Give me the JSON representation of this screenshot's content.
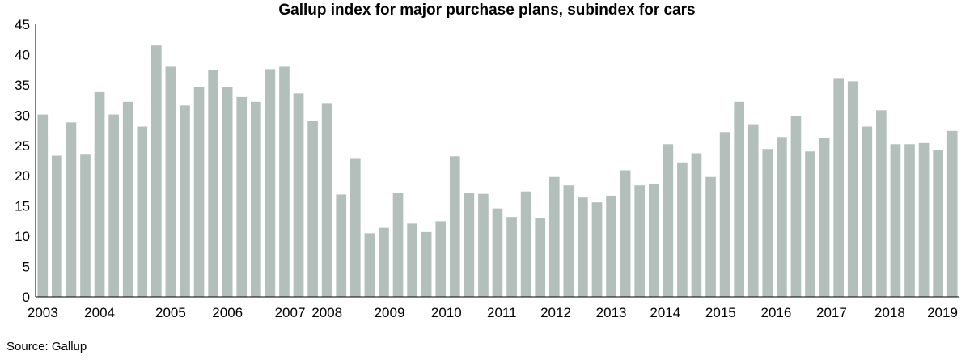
{
  "chart_data": {
    "type": "bar",
    "title": "Gallup index for major purchase plans, subindex for cars",
    "xlabel": "",
    "ylabel": "",
    "ylim": [
      0,
      45
    ],
    "yticks": [
      0,
      5,
      10,
      15,
      20,
      25,
      30,
      35,
      40,
      45
    ],
    "bar_color": "#b2bfba",
    "values": [
      30.1,
      23.3,
      28.8,
      23.6,
      33.8,
      30.1,
      32.2,
      28.1,
      41.5,
      38.0,
      31.6,
      34.7,
      37.5,
      34.7,
      33.0,
      32.2,
      37.6,
      38.0,
      33.6,
      29.0,
      32.0,
      16.9,
      22.9,
      10.5,
      11.4,
      17.1,
      12.1,
      10.7,
      12.5,
      23.2,
      17.2,
      17.0,
      14.6,
      13.2,
      17.4,
      13.0,
      19.8,
      18.4,
      16.4,
      15.6,
      16.7,
      20.9,
      18.4,
      18.7,
      25.2,
      22.2,
      23.7,
      19.8,
      27.2,
      32.2,
      28.5,
      24.4,
      26.4,
      29.8,
      24.0,
      26.2,
      36.0,
      35.6,
      28.1,
      30.8,
      25.2,
      25.2,
      25.4,
      24.3,
      27.4
    ],
    "x_tick_labels": [
      {
        "label": "2003",
        "bar": 0
      },
      {
        "label": "2004",
        "bar": 4
      },
      {
        "label": "2005",
        "bar": 9
      },
      {
        "label": "2006",
        "bar": 13
      },
      {
        "label": "2007",
        "bar": 17.4
      },
      {
        "label": "2008",
        "bar": 20
      },
      {
        "label": "2009",
        "bar": 24.4
      },
      {
        "label": "2010",
        "bar": 28.4
      },
      {
        "label": "2011",
        "bar": 32.3
      },
      {
        "label": "2012",
        "bar": 36.1
      },
      {
        "label": "2013",
        "bar": 40
      },
      {
        "label": "2014",
        "bar": 43.8
      },
      {
        "label": "2015",
        "bar": 47.7
      },
      {
        "label": "2016",
        "bar": 51.6
      },
      {
        "label": "2017",
        "bar": 55.5
      },
      {
        "label": "2018",
        "bar": 59.6
      },
      {
        "label": "2019",
        "bar": 63.5
      }
    ]
  },
  "footer": {
    "source": "Source: Gallup"
  }
}
